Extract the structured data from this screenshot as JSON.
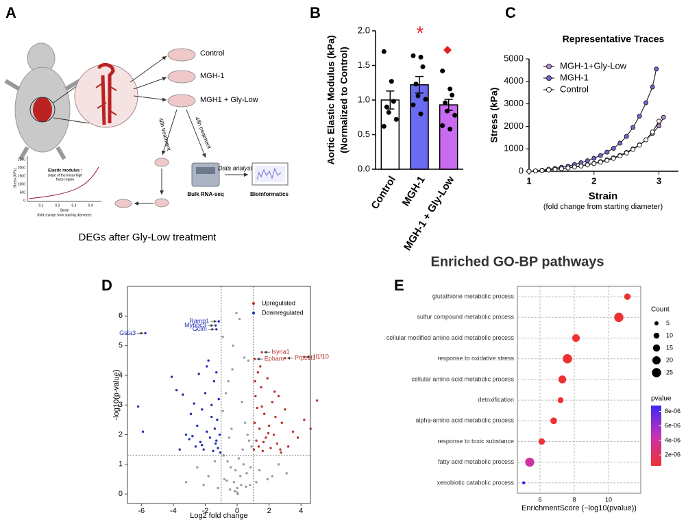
{
  "diagram": {
    "panel": "A",
    "groups": [
      "Control",
      "MGH-1",
      "MGH1 + Gly-Low"
    ],
    "treatment": [
      "48h treatment",
      "48h treatment"
    ],
    "analysis": "Data analysis",
    "sequencing": "Bulk RNA-seq",
    "output": "Bioinformatics",
    "inset": {
      "title": "Elastic modulus :",
      "caption": [
        "slope of the linear high",
        "force region"
      ],
      "ylabel": "Stress (KPa)",
      "xlabel": "Strain",
      "xlabel_note": "(fold change from starting diameter)",
      "xticks": [
        "0.1",
        "0.2",
        "0.3",
        "0.4"
      ],
      "yticks": [
        "0",
        "500",
        "1000",
        "1500",
        "2000",
        "2500"
      ]
    }
  },
  "chart_data": [
    {
      "panel": "B",
      "type": "bar",
      "categories": [
        "Control",
        "MGH-1",
        "MGH-1 + Gly-Low"
      ],
      "values": [
        1.0,
        1.22,
        0.93
      ],
      "errors": [
        0.13,
        0.12,
        0.08
      ],
      "points": [
        [
          1.7,
          1.27,
          0.98,
          0.9,
          0.82,
          0.72,
          0.62
        ],
        [
          1.64,
          1.62,
          1.48,
          1.23,
          1.06,
          1.01,
          0.93,
          0.8
        ],
        [
          1.42,
          1.16,
          1.07,
          0.96,
          0.84,
          0.78,
          0.63,
          0.58
        ]
      ],
      "colors": [
        "#ffffff",
        "#6b6bf2",
        "#c96bf0"
      ],
      "ylabel": [
        "Aortic Elastic Modulus (kPa)",
        "(Normalized to Control)"
      ],
      "ylim": [
        0,
        2.0
      ],
      "yticks": [
        {
          "value": 0,
          "label": "0.0"
        },
        0.5,
        {
          "value": 1,
          "label": "1.0"
        },
        1.5,
        {
          "value": 2,
          "label": "2.0"
        }
      ],
      "significance_mark": "*"
    },
    {
      "panel": "C",
      "type": "line",
      "title": "Representative Traces",
      "xlabel": "Strain",
      "xlabel_note": "(fold change from starting diameter)",
      "ylabel": "Stress (kPa)",
      "xlim": [
        1,
        3.3
      ],
      "xticks": [
        1,
        2,
        3
      ],
      "ylim": [
        0,
        5000
      ],
      "yticks": [
        0,
        1000,
        2000,
        3000,
        4000,
        5000
      ],
      "series": [
        {
          "name": "MGH-1+Gly-Low",
          "color": "#b88be0",
          "x": [
            1.0,
            1.1,
            1.2,
            1.3,
            1.4,
            1.5,
            1.6,
            1.7,
            1.8,
            1.9,
            2.0,
            2.1,
            2.2,
            2.3,
            2.4,
            2.5,
            2.6,
            2.7,
            2.8,
            2.9,
            3.0,
            3.07
          ],
          "values": [
            0,
            15,
            35,
            60,
            90,
            120,
            160,
            200,
            250,
            300,
            360,
            430,
            510,
            600,
            710,
            840,
            1000,
            1180,
            1400,
            1680,
            2020,
            2400
          ]
        },
        {
          "name": "MGH-1",
          "color": "#6f68d8",
          "x": [
            1.0,
            1.1,
            1.2,
            1.3,
            1.4,
            1.5,
            1.6,
            1.7,
            1.8,
            1.9,
            2.0,
            2.1,
            2.2,
            2.3,
            2.4,
            2.5,
            2.6,
            2.7,
            2.8,
            2.9,
            2.96
          ],
          "values": [
            0,
            20,
            50,
            90,
            130,
            180,
            230,
            300,
            380,
            470,
            580,
            700,
            850,
            1020,
            1250,
            1550,
            1950,
            2450,
            3050,
            3750,
            4550
          ]
        },
        {
          "name": "Control",
          "color": "#ffffff",
          "x": [
            1.0,
            1.1,
            1.2,
            1.3,
            1.4,
            1.5,
            1.6,
            1.7,
            1.8,
            1.9,
            2.0,
            2.1,
            2.2,
            2.3,
            2.4,
            2.5,
            2.6,
            2.7,
            2.8,
            2.9,
            3.0
          ],
          "values": [
            0,
            15,
            30,
            55,
            80,
            110,
            145,
            185,
            230,
            280,
            340,
            405,
            480,
            570,
            680,
            810,
            970,
            1160,
            1400,
            1750,
            2230
          ]
        }
      ]
    },
    {
      "panel": "D",
      "type": "scatter",
      "title": "DEGs after Gly-Low treatment",
      "xlabel": "Log2 fold change",
      "ylabel": "-log10(p-value)",
      "xlim": [
        -6.87,
        4.59
      ],
      "xticks": [
        -6,
        -4,
        -2,
        0,
        2,
        4
      ],
      "ylim": [
        -0.32,
        7.0
      ],
      "yticks": [
        0,
        1,
        2,
        3,
        4,
        5,
        6
      ],
      "thresholds": {
        "x": [
          -1,
          1
        ],
        "y": 1.3
      },
      "series": [
        {
          "color": "#9a9a9a",
          "x": [
            -0.9,
            -0.7,
            -0.5,
            -0.3,
            -0.1,
            0.1,
            0.3,
            0.5,
            0.7,
            0.9,
            -0.8,
            -0.6,
            -0.4,
            -0.2,
            0.0,
            0.2,
            0.4,
            0.6,
            0.8,
            -0.35,
            0.15,
            -0.55,
            0.65,
            -0.05,
            0.35,
            -2.5,
            -1.8,
            -1.4,
            1.4,
            1.9,
            2.6,
            3.1,
            -3.2,
            -0.25,
            0.45,
            -0.85,
            0.85,
            -0.15,
            0.05,
            0.25,
            -1.2,
            1.2,
            -2.1,
            2.2,
            0.0,
            -0.45,
            0.55,
            -0.65,
            0.75,
            -0.9
          ],
          "values": [
            2.8,
            3.4,
            1.9,
            4.2,
            0.8,
            1.2,
            3.1,
            2.4,
            4.5,
            1.6,
            0.5,
            1.1,
            0.9,
            0.4,
            0.2,
            0.6,
            1.0,
            0.7,
            0.3,
            2.2,
            5.9,
            3.8,
            2.0,
            6.1,
            1.5,
            0.9,
            0.6,
            1.1,
            0.8,
            0.5,
            1.0,
            0.7,
            0.4,
            5.0,
            4.6,
            1.3,
            0.9,
            0.1,
            0.0,
            0.3,
            0.2,
            0.4,
            0.3,
            0.6,
            0.05,
            0.15,
            0.25,
            0.45,
            1.8,
            5.3
          ]
        },
        {
          "name": "Upregulated",
          "color": "#b8322a",
          "x": [
            1.05,
            1.1,
            1.15,
            1.2,
            1.25,
            1.3,
            1.35,
            1.4,
            1.5,
            1.6,
            1.7,
            1.8,
            1.9,
            2.0,
            2.1,
            2.2,
            2.3,
            2.4,
            2.5,
            2.6,
            2.7,
            2.8,
            3.0,
            3.2,
            3.5,
            3.8,
            4.2,
            4.6,
            5.0,
            1.45,
            1.65,
            1.95,
            2.35,
            2.75,
            1.12,
            1.55,
            1.55,
            1.1,
            3.0,
            4.2
          ],
          "values": [
            1.5,
            2.4,
            3.3,
            1.8,
            2.9,
            4.1,
            1.6,
            2.2,
            3.6,
            1.45,
            2.7,
            1.9,
            3.9,
            2.3,
            1.55,
            3.1,
            2.0,
            2.6,
            1.7,
            3.3,
            1.5,
            2.4,
            2.85,
            1.6,
            2.1,
            1.9,
            2.5,
            2.2,
            3.15,
            4.3,
            1.75,
            2.05,
            3.45,
            1.4,
            3.8,
            2.95,
            4.78,
            4.55,
            4.58,
            4.62
          ]
        },
        {
          "name": "Downregulated",
          "color": "#1f2fb3",
          "x": [
            -6.2,
            -5.9,
            -4.1,
            -3.8,
            -3.4,
            -3.2,
            -3.0,
            -2.9,
            -2.7,
            -2.6,
            -2.5,
            -2.4,
            -2.3,
            -2.2,
            -2.1,
            -2.0,
            -1.9,
            -1.8,
            -1.7,
            -1.6,
            -1.5,
            -1.45,
            -1.4,
            -1.35,
            -1.3,
            -1.25,
            -1.2,
            -1.15,
            -1.1,
            -1.05,
            -2.8,
            -2.2,
            -1.6,
            -1.3,
            -3.6,
            -1.9,
            -5.75,
            -1.35,
            -1.15,
            -1.3
          ],
          "values": [
            2.95,
            2.1,
            3.95,
            3.5,
            3.35,
            2.0,
            1.85,
            2.7,
            3.05,
            1.6,
            2.3,
            4.05,
            1.75,
            2.85,
            1.5,
            3.4,
            2.1,
            4.5,
            1.9,
            2.6,
            1.45,
            3.8,
            2.2,
            1.7,
            4.1,
            2.5,
            1.55,
            3.2,
            2.0,
            1.4,
            1.95,
            1.65,
            3.0,
            1.8,
            1.5,
            4.3,
            5.42,
            5.68,
            5.82,
            5.55
          ]
        }
      ],
      "annotations": [
        {
          "text": "Gsta3",
          "x": -5.75,
          "y": 5.42,
          "color": "#1f2fb3"
        },
        {
          "text": "Mybpc3",
          "x": -1.35,
          "y": 5.68,
          "color": "#1f2fb3"
        },
        {
          "text": "Ramp1",
          "x": -1.15,
          "y": 5.82,
          "color": "#1f2fb3"
        },
        {
          "text": "Gclm",
          "x": -1.3,
          "y": 5.55,
          "color": "#1f2fb3"
        },
        {
          "text": "Isyna1",
          "x": 1.55,
          "y": 4.78,
          "color": "#b8322a"
        },
        {
          "text": "Epham",
          "x": 1.1,
          "y": 4.55,
          "color": "#b8322a"
        },
        {
          "text": "Prps1l1",
          "x": 3.0,
          "y": 4.58,
          "color": "#b8322a"
        },
        {
          "text": "Il1f10",
          "x": 4.2,
          "y": 4.62,
          "color": "#b8322a"
        }
      ]
    },
    {
      "panel": "E",
      "type": "dot",
      "title": "Enriched GO-BP pathways",
      "categories": [
        "glutathione metabolic process",
        "sulfur compound metabolic process",
        "cellular modified amino acid metabolic process",
        "response to oxidative stress",
        "cellular amino acid metabolic process",
        "detoxification",
        "alpha-amino acid metabolic process",
        "response to toxic substance",
        "fatty acid metabolic process",
        "xenobiotic catabolic process"
      ],
      "values": [
        11.1,
        10.6,
        8.1,
        7.6,
        7.3,
        7.2,
        6.8,
        6.1,
        5.4,
        5.05
      ],
      "counts": [
        12,
        25,
        17,
        25,
        18,
        10,
        13,
        12,
        24,
        3
      ],
      "pvalues": [
        7.9e-12,
        2.5e-11,
        7.9e-09,
        2.5e-08,
        5e-08,
        6.3e-08,
        1.6e-07,
        7.9e-07,
        4e-06,
        8.9e-06
      ],
      "xlabel": "EnrichmentScore (−log10(pvalue))",
      "xlim": [
        4.68,
        11.88
      ],
      "xticks": [
        6,
        8,
        10
      ],
      "size_title": "Count",
      "size_legend": [
        5,
        10,
        15,
        20,
        25
      ],
      "color_title": "pvalue",
      "color_lim": [
        5e-07,
        8.8e-06
      ],
      "color_ticks": [
        {
          "value": 2e-06,
          "label": "2e-06"
        },
        {
          "value": 4e-06,
          "label": "4e-06"
        },
        {
          "value": 6e-06,
          "label": "6e-06"
        },
        {
          "value": 8e-06,
          "label": "8e-06"
        }
      ]
    }
  ]
}
